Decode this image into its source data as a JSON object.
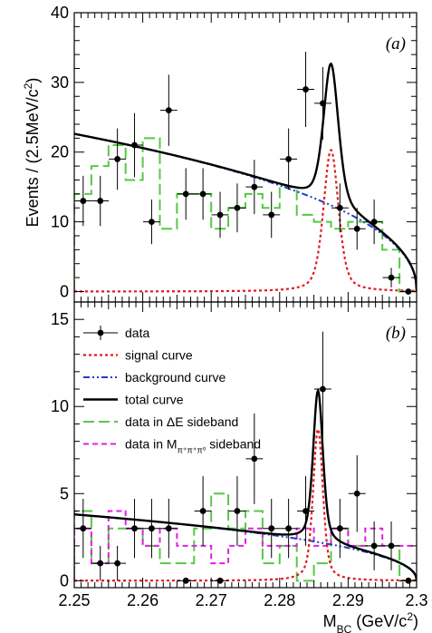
{
  "figure": {
    "ylabel_prefix": "Events / (2.5MeV/c",
    "ylabel_sup": "2",
    "ylabel_suffix": ")",
    "xlabel_main": "M",
    "xlabel_sub": "BC",
    "xlabel_units": " (GeV/c",
    "xlabel_sup": "2",
    "xlabel_close": ")"
  },
  "colors": {
    "data": "#000000",
    "signal": "#e41a1c",
    "background": "#1f3fbf",
    "total": "#000000",
    "deltaE_sideband": "#55c944",
    "mpi_sideband": "#e020e0"
  },
  "chart_data": [
    {
      "type": "line",
      "panel_label": "(a)",
      "xlim": [
        2.25,
        2.3
      ],
      "ylim": [
        -1.5,
        40
      ],
      "x_ticks": [
        2.25,
        2.26,
        2.27,
        2.28,
        2.29,
        2.3
      ],
      "y_ticks": [
        0,
        10,
        20,
        30,
        40
      ],
      "y_tick_labels": [
        "0",
        "10",
        "20",
        "30",
        "40"
      ],
      "data_points": {
        "x": [
          2.2513,
          2.2538,
          2.2563,
          2.2588,
          2.2613,
          2.2638,
          2.2663,
          2.2688,
          2.2713,
          2.2738,
          2.2763,
          2.2788,
          2.2813,
          2.2838,
          2.2863,
          2.2888,
          2.2913,
          2.2938,
          2.2963,
          2.2988
        ],
        "y": [
          13,
          13,
          19,
          21,
          10,
          26,
          14,
          14,
          11,
          12,
          15,
          11,
          19,
          29,
          27,
          12,
          9,
          10,
          2,
          0
        ],
        "err": [
          3.6,
          3.6,
          4.4,
          4.6,
          3.2,
          5.1,
          3.7,
          3.7,
          3.3,
          3.5,
          3.9,
          3.3,
          4.4,
          5.4,
          5.2,
          3.5,
          3.0,
          3.2,
          1.4,
          0
        ]
      },
      "sideband_hist": {
        "edges": [
          2.25,
          2.2525,
          2.255,
          2.2575,
          2.26,
          2.2625,
          2.265,
          2.2675,
          2.27,
          2.2725,
          2.275,
          2.2775,
          2.28,
          2.2825,
          2.285,
          2.2875,
          2.29,
          2.2925,
          2.295,
          2.2975,
          2.3
        ],
        "values": [
          14,
          18,
          21,
          16,
          22,
          9,
          14,
          14,
          9,
          12,
          14,
          12,
          15,
          11,
          10,
          9,
          10,
          10,
          6,
          0
        ]
      },
      "curves": {
        "bkg_A": 11.0,
        "bkg_p": 0.9,
        "signal_amp": 20.3,
        "signal_mean": 2.2875,
        "signal_sigma": 0.0011,
        "signal_tail": 0.0013
      }
    },
    {
      "type": "line",
      "panel_label": "(b)",
      "xlim": [
        2.25,
        2.3
      ],
      "ylim": [
        -0.4,
        16
      ],
      "x_ticks": [
        2.25,
        2.26,
        2.27,
        2.28,
        2.29,
        2.3
      ],
      "x_tick_labels": [
        "2.25",
        "2.26",
        "2.27",
        "2.28",
        "2.29",
        "2.3"
      ],
      "y_ticks": [
        0,
        5,
        10,
        15
      ],
      "y_tick_labels": [
        "0",
        "5",
        "10",
        "15"
      ],
      "legend": [
        {
          "key": "data",
          "label_text": "data"
        },
        {
          "key": "signal",
          "label_text": "signal curve"
        },
        {
          "key": "background",
          "label_text": "background curve"
        },
        {
          "key": "total",
          "label_text": "total curve"
        },
        {
          "key": "deltaE",
          "label_text": "data in ΔE sideband"
        },
        {
          "key": "mpi",
          "label_main": "data in M",
          "label_sub": "π⁺π⁺π⁰",
          "label_after": " sideband"
        }
      ],
      "data_points": {
        "x": [
          2.2513,
          2.2538,
          2.2563,
          2.2588,
          2.2613,
          2.2638,
          2.2663,
          2.2688,
          2.2713,
          2.2738,
          2.2763,
          2.2788,
          2.2813,
          2.2838,
          2.2863,
          2.2888,
          2.2913,
          2.2938,
          2.2963,
          2.2988
        ],
        "y": [
          3,
          1,
          1,
          3,
          3,
          3,
          0,
          4,
          0,
          4,
          7,
          3,
          3,
          4,
          11,
          3,
          5,
          2,
          2,
          0
        ],
        "err": [
          1.7,
          1.0,
          1.0,
          1.7,
          1.7,
          1.7,
          0,
          2.0,
          0,
          2.0,
          2.6,
          1.7,
          1.7,
          2.0,
          3.3,
          1.7,
          2.2,
          1.4,
          1.4,
          0
        ]
      },
      "sideband_hist": {
        "edges": [
          2.25,
          2.2525,
          2.255,
          2.2575,
          2.26,
          2.2625,
          2.265,
          2.2675,
          2.27,
          2.2725,
          2.275,
          2.2775,
          2.28,
          2.2825,
          2.285,
          2.2875,
          2.29,
          2.2925,
          2.295,
          2.2975,
          2.3
        ],
        "values": [
          4,
          1,
          3,
          3,
          2,
          1,
          1,
          3,
          5,
          3,
          4,
          1,
          2,
          0,
          1,
          3,
          2,
          2,
          2,
          0
        ]
      },
      "sideband_hist2": {
        "edges": [
          2.25,
          2.2525,
          2.255,
          2.2575,
          2.26,
          2.2625,
          2.265,
          2.2675,
          2.27,
          2.2725,
          2.275,
          2.2775,
          2.28,
          2.2825,
          2.285,
          2.2875,
          2.29,
          2.2925,
          2.295,
          2.2975,
          2.3
        ],
        "values": [
          3,
          1,
          4,
          3,
          2,
          3,
          2,
          2,
          1,
          2,
          3,
          2,
          2,
          3,
          2,
          3,
          2,
          3,
          2,
          2
        ]
      },
      "curves": {
        "bkg_A": 1.85,
        "bkg_p": 0.9,
        "signal_amp": 8.7,
        "signal_mean": 2.2856,
        "signal_sigma": 0.0007,
        "signal_tail": 0.0009
      }
    }
  ]
}
